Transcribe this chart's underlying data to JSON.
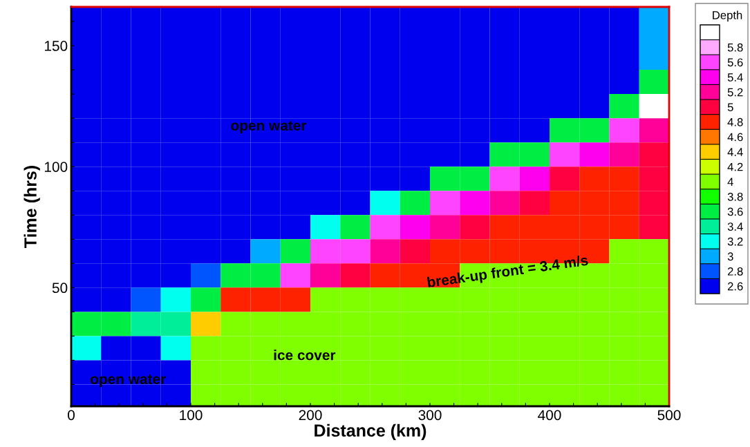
{
  "chart_data": {
    "type": "heatmap",
    "xlabel": "Distance (km)",
    "ylabel": "Time (hrs)",
    "clabel": "Depth",
    "x": [
      12.5,
      37.5,
      62.5,
      87.5,
      112.5,
      137.5,
      162.5,
      187.5,
      212.5,
      237.5,
      262.5,
      287.5,
      312.5,
      337.5,
      362.5,
      387.5,
      412.5,
      437.5,
      462.5,
      487.5
    ],
    "y": [
      165,
      155,
      145,
      135,
      125,
      115,
      105,
      95,
      85,
      75,
      65,
      55,
      45,
      35,
      25,
      15,
      5
    ],
    "cells": [
      [
        2.6,
        2.6,
        2.6,
        2.6,
        2.6,
        2.6,
        2.6,
        2.6,
        2.6,
        2.6,
        2.6,
        2.6,
        2.6,
        2.6,
        2.6,
        2.6,
        2.6,
        2.6,
        2.6,
        3.0
      ],
      [
        2.6,
        2.6,
        2.6,
        2.6,
        2.6,
        2.6,
        2.6,
        2.6,
        2.6,
        2.6,
        2.6,
        2.6,
        2.6,
        2.6,
        2.6,
        2.6,
        2.6,
        2.6,
        2.6,
        3.0
      ],
      [
        2.6,
        2.6,
        2.6,
        2.6,
        2.6,
        2.6,
        2.6,
        2.6,
        2.6,
        2.6,
        2.6,
        2.6,
        2.6,
        2.6,
        2.6,
        2.6,
        2.6,
        2.6,
        2.6,
        3.0
      ],
      [
        2.6,
        2.6,
        2.6,
        2.6,
        2.6,
        2.6,
        2.6,
        2.6,
        2.6,
        2.6,
        2.6,
        2.6,
        2.6,
        2.6,
        2.6,
        2.6,
        2.6,
        2.6,
        2.6,
        3.6
      ],
      [
        2.6,
        2.6,
        2.6,
        2.6,
        2.6,
        2.6,
        2.6,
        2.6,
        2.6,
        2.6,
        2.6,
        2.6,
        2.6,
        2.6,
        2.6,
        2.6,
        2.6,
        2.6,
        3.6,
        6.0
      ],
      [
        2.6,
        2.6,
        2.6,
        2.6,
        2.6,
        2.6,
        2.6,
        2.6,
        2.6,
        2.6,
        2.6,
        2.6,
        2.6,
        2.6,
        2.6,
        2.6,
        3.6,
        3.6,
        5.6,
        5.2
      ],
      [
        2.6,
        2.6,
        2.6,
        2.6,
        2.6,
        2.6,
        2.6,
        2.6,
        2.6,
        2.6,
        2.6,
        2.6,
        2.6,
        2.6,
        3.6,
        3.6,
        5.6,
        5.4,
        5.2,
        5.0
      ],
      [
        2.6,
        2.6,
        2.6,
        2.6,
        2.6,
        2.6,
        2.6,
        2.6,
        2.6,
        2.6,
        2.6,
        2.6,
        3.6,
        3.6,
        5.6,
        5.4,
        5.0,
        4.8,
        4.8,
        5.0
      ],
      [
        2.6,
        2.6,
        2.6,
        2.6,
        2.6,
        2.6,
        2.6,
        2.6,
        2.6,
        2.6,
        3.2,
        3.6,
        5.6,
        5.4,
        5.2,
        5.0,
        4.8,
        4.8,
        4.8,
        5.0
      ],
      [
        2.6,
        2.6,
        2.6,
        2.6,
        2.6,
        2.6,
        2.6,
        2.6,
        3.2,
        3.6,
        5.6,
        5.4,
        5.2,
        5.0,
        4.8,
        4.8,
        4.8,
        4.8,
        4.8,
        5.0
      ],
      [
        2.6,
        2.6,
        2.6,
        2.6,
        2.6,
        2.6,
        3.0,
        3.6,
        5.6,
        5.6,
        5.2,
        5.0,
        4.8,
        4.8,
        4.8,
        4.8,
        4.8,
        4.8,
        4.0,
        4.0
      ],
      [
        2.6,
        2.6,
        2.6,
        2.6,
        2.8,
        3.6,
        3.6,
        5.6,
        5.2,
        5.0,
        4.8,
        4.8,
        4.8,
        4.0,
        4.0,
        4.0,
        4.0,
        4.0,
        4.0,
        4.0
      ],
      [
        2.6,
        2.6,
        2.8,
        3.2,
        3.6,
        4.8,
        4.8,
        4.8,
        4.0,
        4.0,
        4.0,
        4.0,
        4.0,
        4.0,
        4.0,
        4.0,
        4.0,
        4.0,
        4.0,
        4.0
      ],
      [
        3.6,
        3.6,
        3.4,
        3.4,
        4.4,
        4.0,
        4.0,
        4.0,
        4.0,
        4.0,
        4.0,
        4.0,
        4.0,
        4.0,
        4.0,
        4.0,
        4.0,
        4.0,
        4.0,
        4.0
      ],
      [
        3.2,
        2.6,
        2.6,
        3.2,
        4.0,
        4.0,
        4.0,
        4.0,
        4.0,
        4.0,
        4.0,
        4.0,
        4.0,
        4.0,
        4.0,
        4.0,
        4.0,
        4.0,
        4.0,
        4.0
      ],
      [
        2.6,
        2.6,
        2.6,
        2.6,
        4.0,
        4.0,
        4.0,
        4.0,
        4.0,
        4.0,
        4.0,
        4.0,
        4.0,
        4.0,
        4.0,
        4.0,
        4.0,
        4.0,
        4.0,
        4.0
      ],
      [
        2.6,
        2.6,
        2.6,
        2.6,
        4.0,
        4.0,
        4.0,
        4.0,
        4.0,
        4.0,
        4.0,
        4.0,
        4.0,
        4.0,
        4.0,
        4.0,
        4.0,
        4.0,
        4.0,
        4.0
      ]
    ],
    "colors": [
      "#0000ee",
      "#0055ff",
      "#00aaff",
      "#00ffee",
      "#00ee99",
      "#00ee44",
      "#11ff00",
      "#80ff00",
      "#ccff00",
      "#ffcc00",
      "#ff7700",
      "#ff2200",
      "#ff0040",
      "#ff0099",
      "#ff00ee",
      "#ff44ff",
      "#ffaaff",
      "#ffffff"
    ],
    "clim": [
      2.5,
      6.1
    ],
    "cticks": [
      2.6,
      2.8,
      3,
      3.2,
      3.4,
      3.6,
      3.8,
      4,
      4.2,
      4.4,
      4.6,
      4.8,
      5,
      5.2,
      5.4,
      5.6,
      5.8
    ],
    "xlim": [
      0,
      500
    ],
    "xticks": [
      0,
      {
        "value": 20,
        "label": null
      },
      {
        "value": 40,
        "label": null
      },
      {
        "value": 60,
        "label": null
      },
      {
        "value": 80,
        "label": null
      },
      100,
      {
        "value": 120,
        "label": null
      },
      {
        "value": 140,
        "label": null
      },
      {
        "value": 160,
        "label": null
      },
      {
        "value": 180,
        "label": null
      },
      200,
      {
        "value": 220,
        "label": null
      },
      {
        "value": 240,
        "label": null
      },
      {
        "value": 260,
        "label": null
      },
      {
        "value": 280,
        "label": null
      },
      300,
      {
        "value": 320,
        "label": null
      },
      {
        "value": 340,
        "label": null
      },
      {
        "value": 360,
        "label": null
      },
      {
        "value": 380,
        "label": null
      },
      400,
      {
        "value": 420,
        "label": null
      },
      {
        "value": 440,
        "label": null
      },
      {
        "value": 460,
        "label": null
      },
      {
        "value": 480,
        "label": null
      },
      500
    ],
    "ylim": [
      1,
      166
    ],
    "yticks": [
      {
        "value": 10,
        "label": null
      },
      {
        "value": 20,
        "label": null
      },
      {
        "value": 30,
        "label": null
      },
      {
        "value": 40,
        "label": null
      },
      50,
      {
        "value": 60,
        "label": null
      },
      {
        "value": 70,
        "label": null
      },
      {
        "value": 80,
        "label": null
      },
      {
        "value": 90,
        "label": null
      },
      100,
      {
        "value": 110,
        "label": null
      },
      {
        "value": 120,
        "label": null
      },
      {
        "value": 130,
        "label": null
      },
      {
        "value": 140,
        "label": null
      },
      150,
      {
        "value": 160,
        "label": null
      }
    ],
    "annotations": [
      "open water",
      "open water",
      "ice cover",
      "break-up front = 3.4 m/s"
    ]
  }
}
